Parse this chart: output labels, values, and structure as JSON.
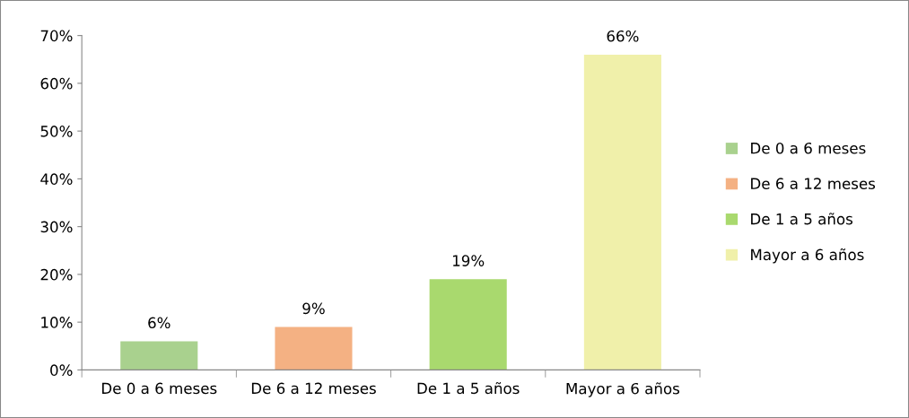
{
  "chart_data": {
    "type": "bar",
    "stacked": true,
    "categories": [
      "De 0 a 6 meses",
      "De 6 a 12 meses",
      "De 1 a 5 años",
      "Mayor a 6 años"
    ],
    "series": [
      {
        "name": "De 0 a 6 meses",
        "color": "#a9d18e",
        "values": [
          6,
          null,
          null,
          null
        ],
        "value_labels": [
          "6%",
          null,
          null,
          null
        ]
      },
      {
        "name": "De 6 a 12 meses",
        "color": "#f4b183",
        "values": [
          null,
          9,
          null,
          null
        ],
        "value_labels": [
          null,
          "9%",
          null,
          null
        ]
      },
      {
        "name": "De 1 a 5 años",
        "color": "#a9d96e",
        "values": [
          null,
          null,
          19,
          null
        ],
        "value_labels": [
          null,
          null,
          "19%",
          null
        ]
      },
      {
        "name": "Mayor a 6 años",
        "color": "#f0f0aa",
        "values": [
          null,
          null,
          null,
          66
        ],
        "value_labels": [
          null,
          null,
          null,
          "66%"
        ]
      }
    ],
    "ylim": [
      0,
      70
    ],
    "yticks": [
      {
        "value": 0,
        "label": "0%"
      },
      {
        "value": 10,
        "label": "10%"
      },
      {
        "value": 20,
        "label": "20%"
      },
      {
        "value": 30,
        "label": "30%"
      },
      {
        "value": 40,
        "label": "40%"
      },
      {
        "value": 50,
        "label": "50%"
      },
      {
        "value": 60,
        "label": "60%"
      },
      {
        "value": 70,
        "label": "70%"
      }
    ],
    "grid": false,
    "legend": "right"
  }
}
